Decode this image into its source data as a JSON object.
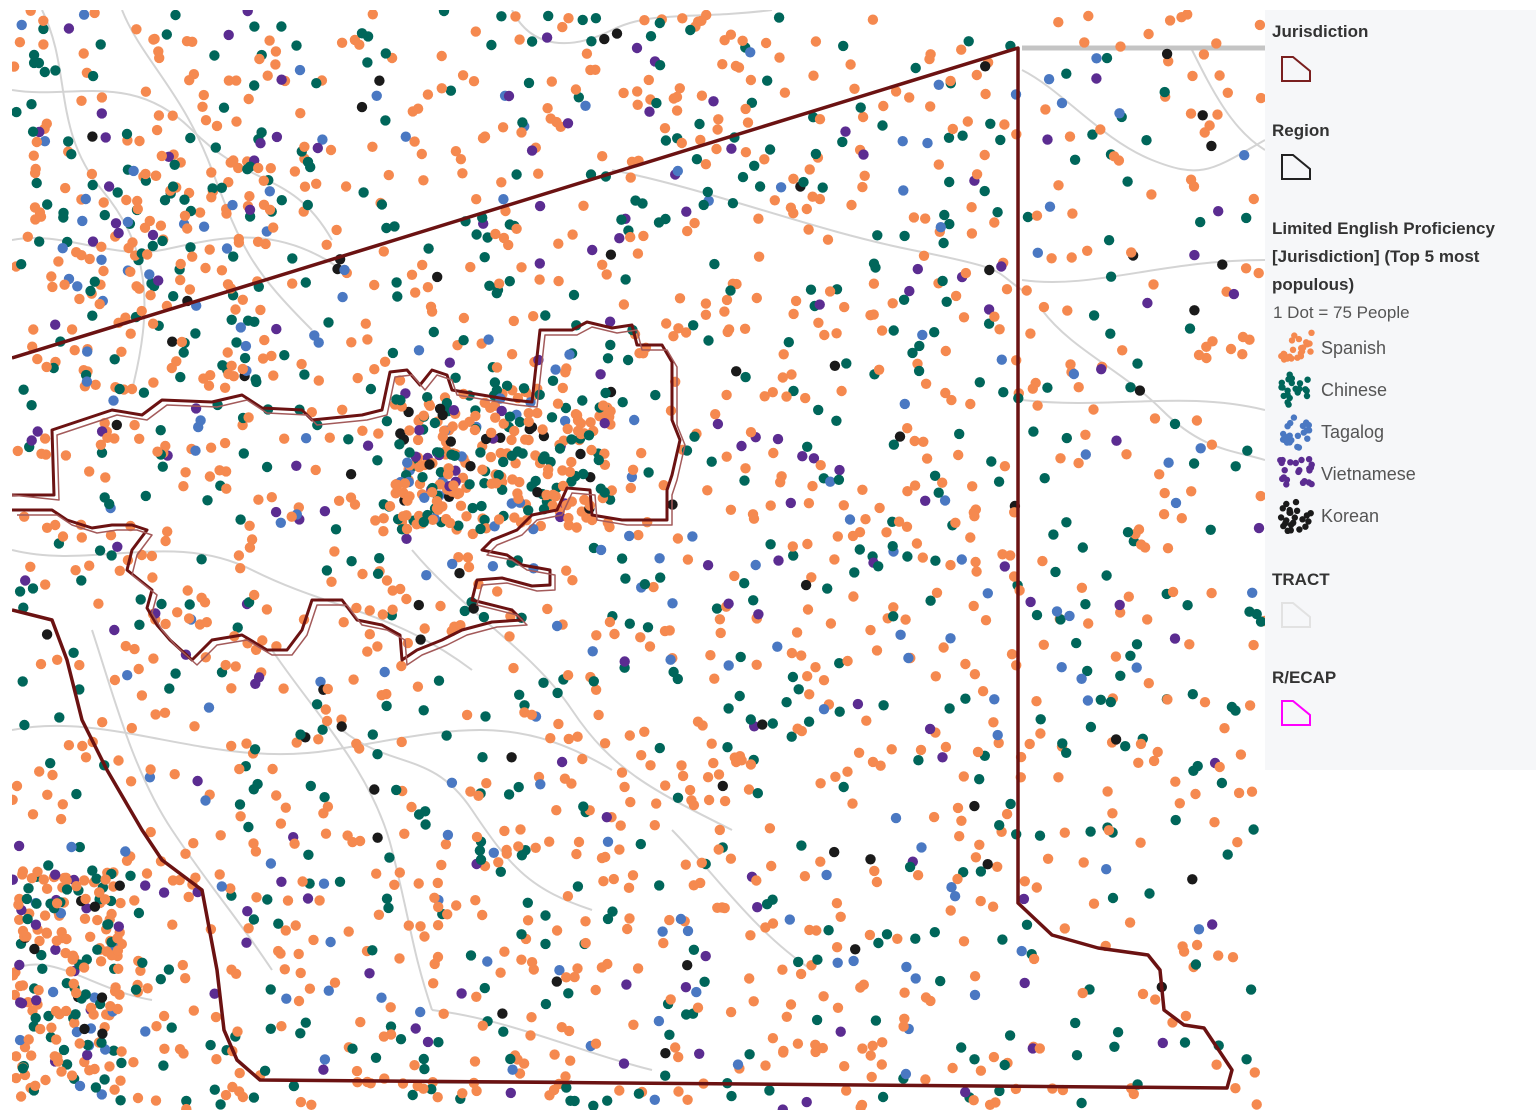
{
  "map": {
    "colors": {
      "background": "#ffffff",
      "roads": "#d4d4d4",
      "highways": "#c4c4c4",
      "jurisdiction_outline": "#6b1212",
      "jurisdiction_inner": "#a35a5a"
    }
  },
  "legend": {
    "jurisdiction": {
      "title": "Jurisdiction",
      "icon": "polygon-outline-icon",
      "color": "#7a1f1f"
    },
    "region": {
      "title": "Region",
      "icon": "polygon-outline-icon",
      "color": "#222222"
    },
    "lep": {
      "title": "Limited English Proficiency [Jurisdiction] (Top 5 most populous)",
      "subtitle": "1 Dot = 75 People",
      "items": [
        {
          "label": "Spanish",
          "color": "#f5894f"
        },
        {
          "label": "Chinese",
          "color": "#00665a"
        },
        {
          "label": "Tagalog",
          "color": "#4a78c2"
        },
        {
          "label": "Vietnamese",
          "color": "#5b2c91"
        },
        {
          "label": "Korean",
          "color": "#1a1a1a"
        }
      ]
    },
    "tract": {
      "title": "TRACT",
      "icon": "polygon-outline-icon",
      "color": "#e2e2e2"
    },
    "recap": {
      "title": "R/ECAP",
      "icon": "polygon-outline-icon",
      "color": "#ff00ff"
    }
  }
}
